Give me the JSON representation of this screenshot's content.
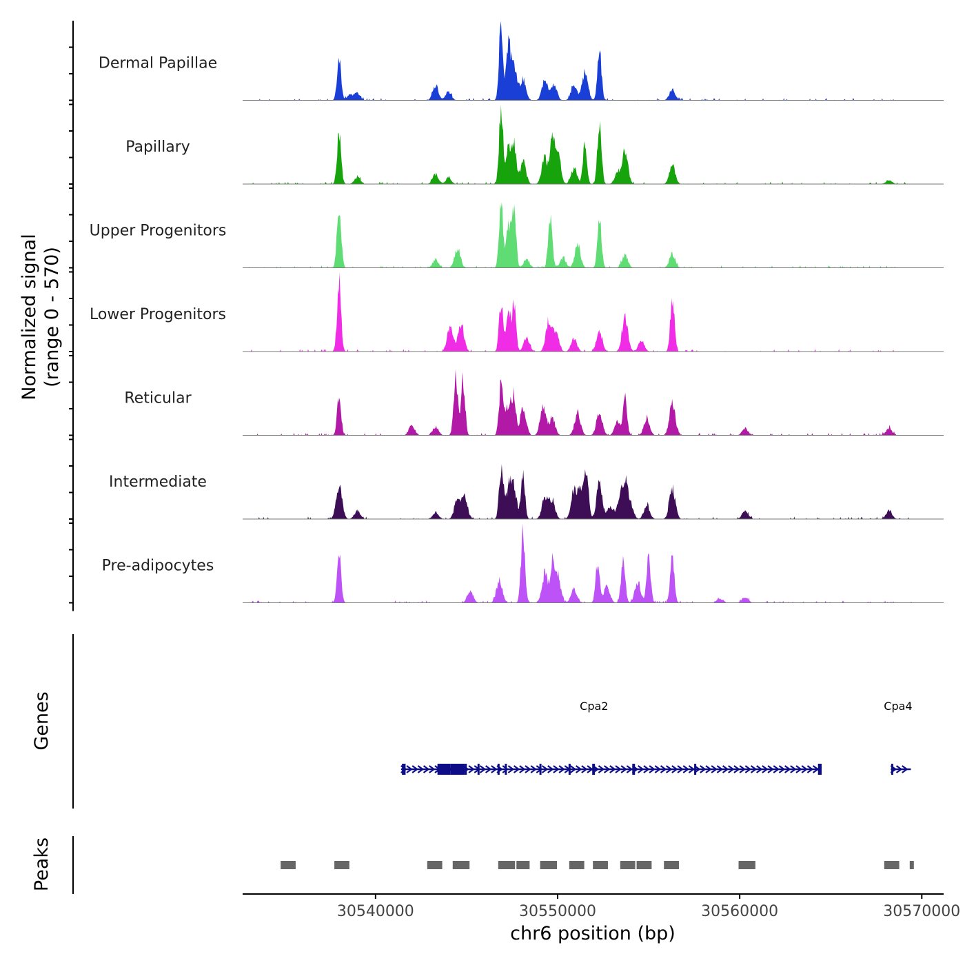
{
  "chart_data": {
    "type": "area",
    "title": "",
    "chromosome": "chr6",
    "xlabel": "chr6 position (bp)",
    "ylabel": "Normalized signal",
    "ylabel_range": "(range 0 - 570)",
    "ylim": [
      0,
      570
    ],
    "xlim": [
      30532700,
      30571200
    ],
    "x_ticks": [
      30540000,
      30550000,
      30560000,
      30570000
    ],
    "x_tick_labels": [
      "30540000",
      "30550000",
      "30560000",
      "30570000"
    ],
    "signal_start": 30532700,
    "signal_end": 30569500,
    "series": [
      {
        "name": "Dermal Papillae",
        "color": "#1a3fd6",
        "peaks": [
          [
            30538000,
            300
          ],
          [
            30538600,
            40
          ],
          [
            30539000,
            50
          ],
          [
            30543300,
            100
          ],
          [
            30544000,
            60
          ],
          [
            30546900,
            570
          ],
          [
            30547300,
            400
          ],
          [
            30547600,
            250
          ],
          [
            30548100,
            150
          ],
          [
            30549300,
            150
          ],
          [
            30549800,
            110
          ],
          [
            30550900,
            110
          ],
          [
            30551500,
            200
          ],
          [
            30552300,
            350
          ],
          [
            30556300,
            80
          ]
        ]
      },
      {
        "name": "Papillary",
        "color": "#16a30c",
        "peaks": [
          [
            30538000,
            370
          ],
          [
            30539000,
            50
          ],
          [
            30543300,
            70
          ],
          [
            30544000,
            40
          ],
          [
            30546900,
            570
          ],
          [
            30547300,
            280
          ],
          [
            30547600,
            300
          ],
          [
            30548100,
            160
          ],
          [
            30549300,
            190
          ],
          [
            30549700,
            300
          ],
          [
            30550000,
            230
          ],
          [
            30550900,
            110
          ],
          [
            30551500,
            280
          ],
          [
            30552300,
            470
          ],
          [
            30553700,
            230
          ],
          [
            30553300,
            80
          ],
          [
            30556300,
            130
          ],
          [
            30568200,
            30
          ]
        ]
      },
      {
        "name": "Upper Progenitors",
        "color": "#5fdd74",
        "peaks": [
          [
            30538000,
            470
          ],
          [
            30543300,
            60
          ],
          [
            30544500,
            140
          ],
          [
            30546900,
            490
          ],
          [
            30547300,
            300
          ],
          [
            30547600,
            450
          ],
          [
            30548300,
            60
          ],
          [
            30549600,
            380
          ],
          [
            30550300,
            70
          ],
          [
            30551100,
            160
          ],
          [
            30552300,
            350
          ],
          [
            30553700,
            90
          ],
          [
            30556300,
            100
          ]
        ]
      },
      {
        "name": "Lower Progenitors",
        "color": "#f02ce6",
        "peaks": [
          [
            30538000,
            500
          ],
          [
            30544100,
            180
          ],
          [
            30544700,
            200
          ],
          [
            30546900,
            360
          ],
          [
            30547300,
            280
          ],
          [
            30547600,
            350
          ],
          [
            30548300,
            100
          ],
          [
            30549500,
            200
          ],
          [
            30549900,
            150
          ],
          [
            30550900,
            90
          ],
          [
            30552300,
            140
          ],
          [
            30553700,
            240
          ],
          [
            30554600,
            80
          ],
          [
            30556300,
            380
          ]
        ]
      },
      {
        "name": "Reticular",
        "color": "#b219a6",
        "peaks": [
          [
            30538000,
            270
          ],
          [
            30542000,
            70
          ],
          [
            30543300,
            60
          ],
          [
            30544400,
            420
          ],
          [
            30544800,
            400
          ],
          [
            30546900,
            380
          ],
          [
            30547300,
            220
          ],
          [
            30547600,
            260
          ],
          [
            30548100,
            200
          ],
          [
            30549200,
            200
          ],
          [
            30549700,
            120
          ],
          [
            30551100,
            160
          ],
          [
            30552300,
            160
          ],
          [
            30553700,
            280
          ],
          [
            30553300,
            100
          ],
          [
            30554900,
            120
          ],
          [
            30556300,
            220
          ],
          [
            30560300,
            50
          ],
          [
            30568200,
            50
          ]
        ]
      },
      {
        "name": "Intermediate",
        "color": "#3d0e56",
        "peaks": [
          [
            30538000,
            240
          ],
          [
            30539000,
            60
          ],
          [
            30543300,
            50
          ],
          [
            30544500,
            150
          ],
          [
            30544900,
            150
          ],
          [
            30546900,
            380
          ],
          [
            30547300,
            210
          ],
          [
            30547600,
            200
          ],
          [
            30548100,
            300
          ],
          [
            30549300,
            150
          ],
          [
            30549700,
            140
          ],
          [
            30550900,
            200
          ],
          [
            30551300,
            220
          ],
          [
            30551600,
            300
          ],
          [
            30552300,
            250
          ],
          [
            30552900,
            90
          ],
          [
            30553400,
            110
          ],
          [
            30553700,
            250
          ],
          [
            30554000,
            100
          ],
          [
            30554900,
            100
          ],
          [
            30556300,
            220
          ],
          [
            30560300,
            60
          ],
          [
            30568200,
            60
          ]
        ]
      },
      {
        "name": "Pre-adipocytes",
        "color": "#bd52f6",
        "peaks": [
          [
            30538000,
            350
          ],
          [
            30545200,
            90
          ],
          [
            30546800,
            160
          ],
          [
            30548100,
            510
          ],
          [
            30549300,
            210
          ],
          [
            30549700,
            260
          ],
          [
            30550000,
            200
          ],
          [
            30550900,
            100
          ],
          [
            30552200,
            300
          ],
          [
            30552700,
            120
          ],
          [
            30553600,
            320
          ],
          [
            30554400,
            150
          ],
          [
            30555000,
            330
          ],
          [
            30556300,
            330
          ],
          [
            30558900,
            30
          ],
          [
            30560300,
            40
          ]
        ]
      }
    ],
    "genes": {
      "label": "Genes",
      "items": [
        {
          "name": "Cpa2",
          "start": 30541400,
          "end": 30564500,
          "strand": "+",
          "label_x": 30552000,
          "exons": [
            [
              30541450,
              30541650
            ],
            [
              30543400,
              30544100
            ],
            [
              30544100,
              30544900
            ],
            [
              30544900,
              30545000
            ],
            [
              30545600,
              30545700
            ],
            [
              30546700,
              30546800
            ],
            [
              30547100,
              30547200
            ],
            [
              30549000,
              30549100
            ],
            [
              30550600,
              30550700
            ],
            [
              30551900,
              30552050
            ],
            [
              30554100,
              30554250
            ],
            [
              30557500,
              30557550
            ],
            [
              30564300,
              30564500
            ]
          ]
        },
        {
          "name": "Cpa4",
          "start": 30568300,
          "end": 30569400,
          "strand": "+",
          "label_x": 30568700,
          "exons": [
            [
              30568320,
              30568420
            ]
          ]
        }
      ]
    },
    "peaks_track": {
      "label": "Peaks",
      "regions": [
        [
          30534750,
          30535650
        ],
        [
          30537700,
          30538600
        ],
        [
          30542800,
          30543700
        ],
        [
          30544200,
          30545200
        ],
        [
          30546700,
          30547700
        ],
        [
          30547700,
          30548500
        ],
        [
          30549000,
          30550000
        ],
        [
          30550600,
          30551500
        ],
        [
          30551900,
          30552800
        ],
        [
          30553400,
          30554300
        ],
        [
          30554300,
          30555200
        ],
        [
          30555800,
          30556700
        ],
        [
          30559900,
          30560900
        ],
        [
          30567900,
          30568800
        ],
        [
          30569300,
          30569600
        ]
      ]
    }
  }
}
